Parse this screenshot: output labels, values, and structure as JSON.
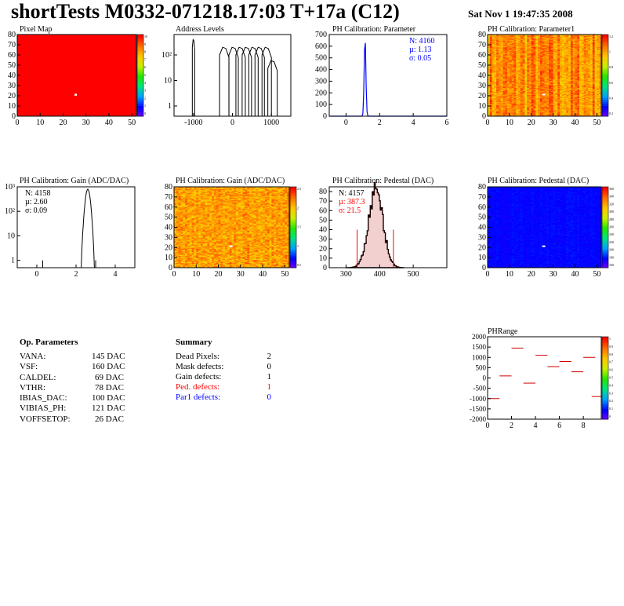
{
  "header": {
    "title": "shortTests M0332-071218.17:03 T+17a (C12)",
    "date": "Sat Nov  1 19:47:35 2008"
  },
  "op_parameters": {
    "title": "Op. Parameters",
    "rows": [
      {
        "name": "VANA:",
        "value": "145 DAC"
      },
      {
        "name": "VSF:",
        "value": "160 DAC"
      },
      {
        "name": "CALDEL:",
        "value": "69 DAC"
      },
      {
        "name": "VTHR:",
        "value": "78 DAC"
      },
      {
        "name": "IBIAS_DAC:",
        "value": "100 DAC"
      },
      {
        "name": "VIBIAS_PH:",
        "value": "121 DAC"
      },
      {
        "name": "VOFFSETOP:",
        "value": "26 DAC"
      }
    ]
  },
  "summary": {
    "title": "Summary",
    "rows": [
      {
        "name": "Dead Pixels:",
        "value": "2",
        "color": "#000000"
      },
      {
        "name": "Mask defects:",
        "value": "0",
        "color": "#000000"
      },
      {
        "name": "Gain defects:",
        "value": "1",
        "color": "#000000"
      },
      {
        "name": "Ped. defects:",
        "value": "1",
        "color": "#ff0000"
      },
      {
        "name": "Par1 defects:",
        "value": "0",
        "color": "#0000ff"
      }
    ]
  },
  "chart_data": [
    {
      "type": "heatmap",
      "title": "Pixel Map",
      "x_range": [
        0,
        52
      ],
      "y_range": [
        0,
        80
      ],
      "x_ticks": [
        0,
        10,
        20,
        30,
        40,
        50
      ],
      "y_ticks": [
        0,
        10,
        20,
        30,
        40,
        50,
        60,
        70,
        80
      ],
      "z_range": [
        0,
        10
      ],
      "z_ticks": [
        "10",
        "9",
        "8",
        "7",
        "6",
        "5",
        "4",
        "3",
        "2",
        "1",
        "0"
      ],
      "uniform_color": "#ff0000",
      "special_pixels": [
        {
          "x": 25,
          "y": 21
        }
      ]
    },
    {
      "type": "bar",
      "title": "Address Levels",
      "x_range": [
        -1500,
        1500
      ],
      "log_y": true,
      "x_ticks": [
        "-1000",
        "0",
        "1000"
      ],
      "y_ticks": [
        "1",
        "10",
        "10^2"
      ],
      "peaks": [
        {
          "x": -1000,
          "height": 400
        },
        {
          "x": -210,
          "height": 200
        },
        {
          "x": 30,
          "height": 200
        },
        {
          "x": 210,
          "height": 200
        },
        {
          "x": 370,
          "height": 200
        },
        {
          "x": 540,
          "height": 200
        },
        {
          "x": 700,
          "height": 200
        },
        {
          "x": 880,
          "height": 200
        },
        {
          "x": 1030,
          "height": 60
        }
      ]
    },
    {
      "type": "bar",
      "title": "PH Calibration: Parameter",
      "x_range": [
        -1,
        6
      ],
      "y_range": [
        0,
        700
      ],
      "x_ticks": [
        "0",
        "2",
        "4",
        "6"
      ],
      "y_ticks": [
        "0",
        "100",
        "200",
        "300",
        "400",
        "500",
        "600",
        "700"
      ],
      "stats": {
        "N": "N: 4160",
        "mean": "µ: 1.13",
        "sigma": "σ: 0.05"
      },
      "mean": 1.13,
      "sigma": 0.05,
      "peak": 680,
      "line_color": "#0000ff"
    },
    {
      "type": "heatmap",
      "title": "PH Calibration: Parameter1",
      "x_range": [
        0,
        52
      ],
      "y_range": [
        0,
        80
      ],
      "x_ticks": [
        0,
        10,
        20,
        30,
        40,
        50
      ],
      "y_ticks": [
        0,
        10,
        20,
        30,
        40,
        50,
        60,
        70,
        80
      ],
      "z_ticks": [
        "1.2",
        "1",
        "0.8",
        "0.6",
        "0.4",
        "0.2"
      ],
      "special_pixels": [
        {
          "x": 25,
          "y": 21
        }
      ]
    },
    {
      "type": "bar",
      "title": "PH Calibration: Gain (ADC/DAC)",
      "x_range": [
        -1,
        5
      ],
      "log_y": true,
      "x_ticks": [
        "0",
        "2",
        "4"
      ],
      "y_ticks": [
        "1",
        "10",
        "10^2",
        "10^3"
      ],
      "stats": {
        "N": "N: 4158",
        "mean": "µ: 2.60",
        "sigma": "σ: 0.09"
      },
      "mean": 2.6,
      "sigma": 0.09,
      "peak": 800,
      "outliers": [
        0.3,
        3.0
      ]
    },
    {
      "type": "heatmap",
      "title": "PH Calibration: Gain (ADC/DAC)",
      "x_range": [
        0,
        52
      ],
      "y_range": [
        0,
        80
      ],
      "x_ticks": [
        0,
        10,
        20,
        30,
        40,
        50
      ],
      "y_ticks": [
        0,
        10,
        20,
        30,
        40,
        50,
        60,
        70,
        80
      ],
      "z_ticks": [
        "2.5",
        "2",
        "1.5",
        "1",
        "0.5"
      ],
      "special_pixels": [
        {
          "x": 25,
          "y": 21
        }
      ]
    },
    {
      "type": "bar",
      "title": "PH Calibration: Pedestal (DAC)",
      "x_range": [
        250,
        600
      ],
      "y_range": [
        0,
        85
      ],
      "x_ticks": [
        "300",
        "400",
        "500"
      ],
      "y_ticks": [
        "0",
        "10",
        "20",
        "30",
        "40",
        "50",
        "60",
        "70",
        "80"
      ],
      "stats": {
        "N": "N: 4157",
        "mean": "µ: 387.3",
        "sigma": "σ: 21.5"
      },
      "mean": 387.3,
      "sigma": 21.5,
      "peak": 80,
      "cut_lines": [
        333,
        441
      ]
    },
    {
      "type": "heatmap",
      "title": "PH Calibration: Pedestal (DAC)",
      "x_range": [
        0,
        52
      ],
      "y_range": [
        0,
        80
      ],
      "x_ticks": [
        0,
        10,
        20,
        30,
        40,
        50
      ],
      "y_ticks": [
        0,
        10,
        20,
        30,
        40,
        50,
        60,
        70,
        80
      ],
      "z_ticks": [
        "360",
        "340",
        "320",
        "300",
        "280",
        "260",
        "240",
        "220",
        "200",
        "180",
        "160"
      ],
      "special_pixels": [
        {
          "x": 25,
          "y": 21
        }
      ]
    },
    {
      "type": "scatter",
      "title": "PHRange",
      "x_range": [
        0,
        9.5
      ],
      "y_range": [
        -2000,
        2000
      ],
      "x_ticks": [
        "0",
        "2",
        "4",
        "6",
        "8"
      ],
      "y_ticks": [
        "2000",
        "1500",
        "1000",
        "500",
        "0",
        "-500",
        "-1000",
        "-1500",
        "-2000"
      ],
      "z_ticks": [
        "1",
        "0.9",
        "0.8",
        "0.7",
        "0.6",
        "0.5",
        "0.4",
        "0.3",
        "0.2",
        "0.1",
        "0"
      ],
      "segments": [
        {
          "x": 0.5,
          "y": -1000
        },
        {
          "x": 1.5,
          "y": 100
        },
        {
          "x": 2.5,
          "y": 1450
        },
        {
          "x": 3.5,
          "y": -250
        },
        {
          "x": 4.5,
          "y": 1100
        },
        {
          "x": 5.5,
          "y": 550
        },
        {
          "x": 6.5,
          "y": 800
        },
        {
          "x": 7.5,
          "y": 300
        },
        {
          "x": 8.5,
          "y": 1000
        },
        {
          "x": 9.2,
          "y": -900
        }
      ]
    }
  ]
}
